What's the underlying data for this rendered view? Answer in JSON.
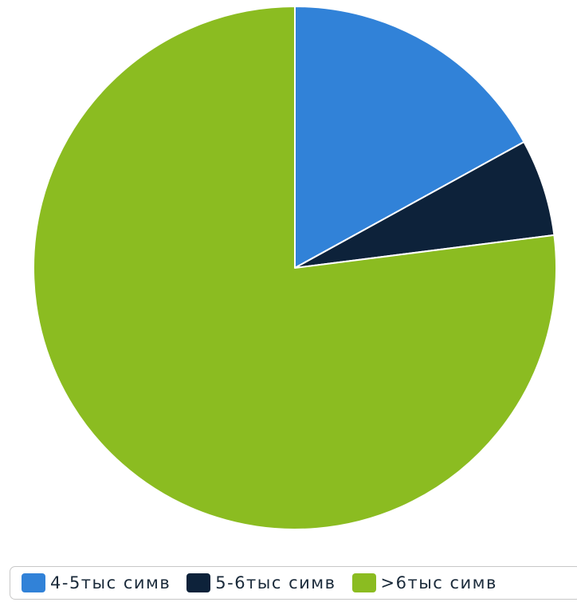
{
  "chart_data": {
    "type": "pie",
    "slices": [
      {
        "label": "4-5тыс симв",
        "value": 17,
        "color": "#3182d8"
      },
      {
        "label": "5-6тыс симв",
        "value": 6,
        "color": "#0d223a"
      },
      {
        "label": ">6тыс симв",
        "value": 77,
        "color": "#8bbc21"
      }
    ],
    "start_angle_deg": 0,
    "direction": "clockwise",
    "legend_position": "bottom"
  }
}
